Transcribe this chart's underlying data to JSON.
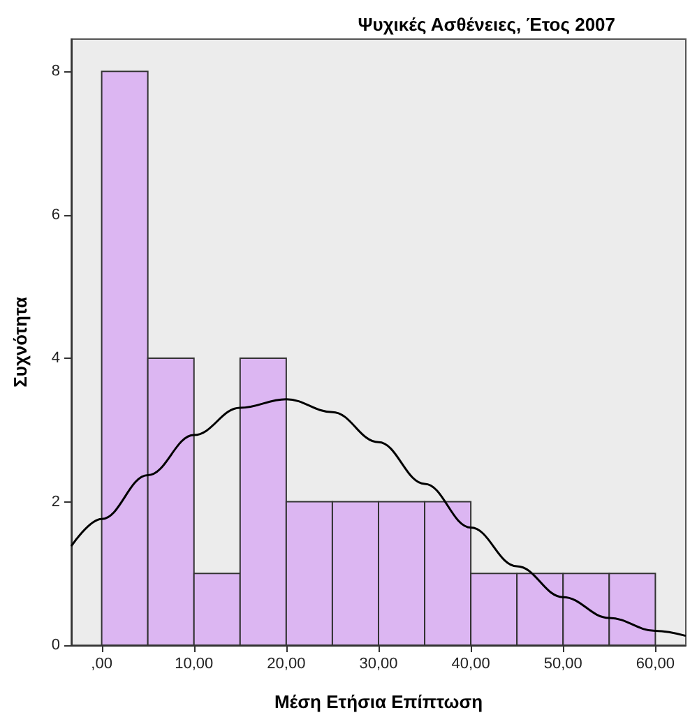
{
  "chart_data": {
    "type": "histogram",
    "title": "Ψυχικές Ασθένειες, Έτος 2007",
    "xlabel": "Μέση Ετήσια Επίπτωση",
    "ylabel": "Συχνότητα",
    "bins": [
      0,
      5,
      10,
      15,
      20,
      25,
      30,
      35,
      40,
      45,
      50,
      55,
      60
    ],
    "series": [
      {
        "color": "#dcb6f2",
        "values": [
          8,
          4,
          1,
          4,
          2,
          2,
          2,
          2,
          1,
          1,
          1,
          1
        ]
      },
      {
        "type": "line",
        "color": "#000000",
        "x": [
          -3.3,
          0,
          5,
          10,
          15,
          20,
          25,
          30,
          35,
          40,
          45,
          50,
          55,
          60,
          63.3
        ],
        "values": [
          1.38,
          1.76,
          2.37,
          2.93,
          3.31,
          3.43,
          3.25,
          2.83,
          2.25,
          1.64,
          1.1,
          0.67,
          0.38,
          0.2,
          0.13
        ]
      }
    ],
    "xlim": [
      -3.3,
      63.3
    ],
    "ylim": [
      0,
      8.45
    ],
    "xticks": [
      {
        "value": 0,
        "label": ",00"
      },
      {
        "value": 10,
        "label": "10,00"
      },
      {
        "value": 20,
        "label": "20,00"
      },
      {
        "value": 30,
        "label": "30,00"
      },
      {
        "value": 40,
        "label": "40,00"
      },
      {
        "value": 50,
        "label": "50,00"
      },
      {
        "value": 60,
        "label": "60,00"
      }
    ],
    "yticks": [
      0,
      2,
      4,
      6,
      8
    ],
    "grid": false
  }
}
